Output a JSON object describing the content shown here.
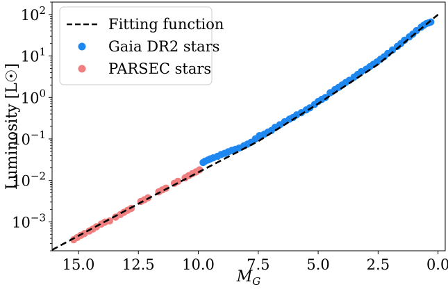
{
  "chart_data": {
    "type": "scatter",
    "xlabel": "M_G",
    "ylabel": "Luminosity [L☉]",
    "x_reversed": true,
    "y_scale": "log",
    "xlim": [
      16.1,
      -0.3
    ],
    "ylim": [
      0.0002,
      200
    ],
    "x_ticks": [
      15.0,
      12.5,
      10.0,
      7.5,
      5.0,
      2.5,
      0.0
    ],
    "x_tick_labels": [
      "15.0",
      "12.5",
      "10.0",
      "7.5",
      "5.0",
      "2.5",
      "0.0"
    ],
    "y_ticks": [
      0.001,
      0.01,
      0.1,
      1,
      10,
      100
    ],
    "y_tick_labels": [
      {
        "base": "10",
        "exp": "−3"
      },
      {
        "base": "10",
        "exp": "−2"
      },
      {
        "base": "10",
        "exp": "−1"
      },
      {
        "base": "10",
        "exp": "0"
      },
      {
        "base": "10",
        "exp": "1"
      },
      {
        "base": "10",
        "exp": "2"
      }
    ],
    "grid": false,
    "legend_position": "top-left",
    "fit_line": {
      "name": "Fitting function",
      "color": "#000000",
      "style": "dashed",
      "points": [
        [
          16.1,
          0.00021
        ],
        [
          12.0,
          0.0039
        ],
        [
          9.8,
          0.018
        ],
        [
          7.5,
          0.088
        ],
        [
          5.0,
          0.71
        ],
        [
          2.5,
          6.3
        ],
        [
          0.0,
          100
        ]
      ]
    },
    "series": [
      {
        "name": "Gaia DR2 stars",
        "color": "#1e88f0",
        "x": [
          9.8,
          9.72,
          9.6,
          9.5,
          9.38,
          9.2,
          9.05,
          8.9,
          8.75,
          8.6,
          8.45,
          8.3,
          8.1,
          7.95,
          7.8,
          7.62,
          7.45,
          7.25,
          7.1,
          6.95,
          6.8,
          6.6,
          6.4,
          6.2,
          6.05,
          5.9,
          5.7,
          5.5,
          5.35,
          5.15,
          5.0,
          4.85,
          4.7,
          4.5,
          4.3,
          4.15,
          4.0,
          3.85,
          3.7,
          3.5,
          3.35,
          3.2,
          3.0,
          2.85,
          2.7,
          2.55,
          2.4,
          2.25,
          2.1,
          1.9,
          1.7,
          1.55,
          1.4,
          1.2,
          1.05,
          0.9,
          0.7,
          0.6,
          0.5,
          0.4,
          0.3
        ],
        "y": [
          0.027,
          0.029,
          0.031,
          0.033,
          0.035,
          0.038,
          0.042,
          0.045,
          0.049,
          0.053,
          0.056,
          0.06,
          0.068,
          0.075,
          0.083,
          0.1,
          0.12,
          0.13,
          0.145,
          0.16,
          0.19,
          0.22,
          0.26,
          0.3,
          0.33,
          0.38,
          0.43,
          0.5,
          0.56,
          0.68,
          0.8,
          0.9,
          1.0,
          1.3,
          1.55,
          1.75,
          2.0,
          2.3,
          2.6,
          3.1,
          3.6,
          4.2,
          4.8,
          5.5,
          6.3,
          7.2,
          8.4,
          9.6,
          11.5,
          14.0,
          17.0,
          20.0,
          24.0,
          29.0,
          34.0,
          41.0,
          50.0,
          55.0,
          60.0,
          63.0,
          66.0
        ]
      },
      {
        "name": "PARSEC stars",
        "color": "#f08080",
        "x": [
          15.2,
          15.05,
          14.9,
          14.75,
          14.55,
          14.4,
          14.25,
          14.05,
          13.9,
          13.7,
          13.45,
          13.25,
          13.1,
          12.95,
          12.8,
          12.4,
          12.25,
          12.1,
          11.65,
          11.5,
          11.35,
          11.0,
          10.85,
          10.55,
          10.4,
          10.25,
          10.1,
          9.95
        ],
        "y": [
          0.00037,
          0.00042,
          0.00047,
          0.00052,
          0.0006,
          0.00067,
          0.00076,
          0.00088,
          0.00098,
          0.00105,
          0.0013,
          0.0015,
          0.0017,
          0.0019,
          0.0021,
          0.0031,
          0.0034,
          0.0038,
          0.0053,
          0.0059,
          0.0065,
          0.0085,
          0.0095,
          0.0115,
          0.013,
          0.0145,
          0.016,
          0.018
        ]
      }
    ]
  }
}
